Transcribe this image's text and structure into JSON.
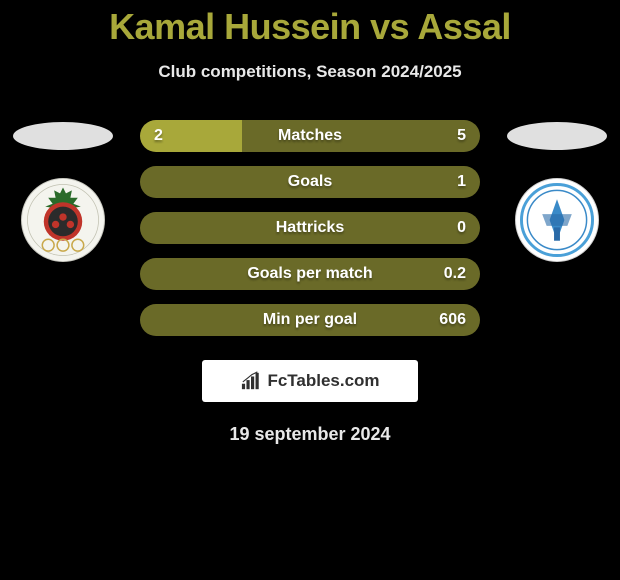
{
  "title": "Kamal Hussein vs Assal",
  "title_color": "#a8a83a",
  "subtitle": "Club competitions, Season 2024/2025",
  "colors": {
    "left_fill": "#a8a83a",
    "right_fill": "#6a6a28",
    "text": "#ffffff",
    "shadow": "rgba(0,0,0,0.35)"
  },
  "bars": [
    {
      "label": "Matches",
      "left": "2",
      "right": "5",
      "left_pct": 30,
      "right_pct": 70
    },
    {
      "label": "Goals",
      "left": "",
      "right": "1",
      "left_pct": 0,
      "right_pct": 100
    },
    {
      "label": "Hattricks",
      "left": "",
      "right": "0",
      "left_pct": 0,
      "right_pct": 100
    },
    {
      "label": "Goals per match",
      "left": "",
      "right": "0.2",
      "left_pct": 0,
      "right_pct": 100
    },
    {
      "label": "Min per goal",
      "left": "",
      "right": "606",
      "left_pct": 0,
      "right_pct": 100
    }
  ],
  "brand": "FcTables.com",
  "date": "19 september 2024"
}
